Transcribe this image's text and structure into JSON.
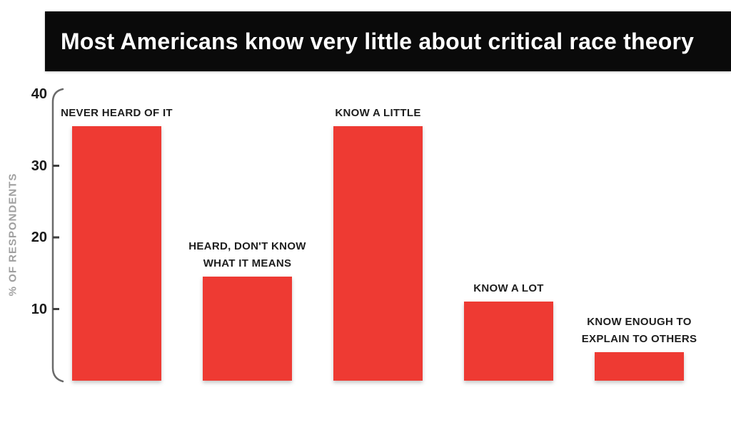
{
  "header": {
    "title": "Most Americans know very little about critical race theory",
    "background": "#0a0a0a",
    "text_color": "#ffffff"
  },
  "chart_data": {
    "type": "bar",
    "title": "Most Americans know very little about critical race theory",
    "xlabel": "",
    "ylabel": "% OF RESPONDENTS",
    "ylim": [
      0,
      40
    ],
    "y_ticks": [
      40,
      30,
      20,
      10
    ],
    "grid": false,
    "legend": false,
    "bar_color": "#ee3a33",
    "axis_color": "#6a6a6a",
    "tick_color": "#3f3f3f",
    "categories": [
      "NEVER HEARD OF IT",
      "HEARD, DON'T KNOW WHAT IT MEANS",
      "KNOW A LITTLE",
      "KNOW A LOT",
      "KNOW ENOUGH TO EXPLAIN TO OTHERS"
    ],
    "values": [
      35.5,
      14.5,
      35.5,
      11,
      4
    ],
    "label_lines": [
      [
        "NEVER HEARD OF IT"
      ],
      [
        "HEARD, DON'T KNOW",
        "WHAT IT MEANS"
      ],
      [
        "KNOW A LITTLE"
      ],
      [
        "KNOW A LOT"
      ],
      [
        "KNOW ENOUGH TO",
        "EXPLAIN TO OTHERS"
      ]
    ]
  }
}
